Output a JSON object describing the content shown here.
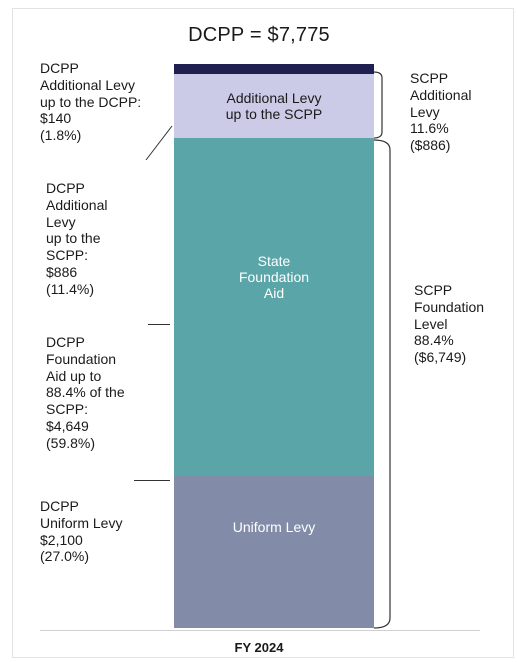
{
  "chart_data": {
    "type": "bar",
    "title": "DCPP = $7,775",
    "categories": [
      "FY 2024"
    ],
    "total": 7775,
    "ylim": [
      0,
      7775
    ],
    "segments": [
      {
        "key": "uniform",
        "name": "Uniform Levy",
        "value": 2100,
        "color": "#828ca8",
        "text_color": "#ffffff"
      },
      {
        "key": "foundation",
        "name": "State\nFoundation\nAid",
        "value": 4649,
        "color": "#5aa5a8",
        "text_color": "#ffffff"
      },
      {
        "key": "addl_scpp",
        "name": "Additional Levy\nup to the SCPP",
        "value": 886,
        "color": "#cbcbe8",
        "text_color": "#1a1a1a"
      },
      {
        "key": "addl_dcpp",
        "name": "",
        "value": 140,
        "color": "#1f2050",
        "text_color": "#ffffff"
      }
    ],
    "left_annotations": [
      {
        "key": "addl_dcpp",
        "text": "DCPP\nAdditional Levy\nup to the DCPP:\n$140\n(1.8%)"
      },
      {
        "key": "addl_scpp",
        "text": "DCPP\nAdditional\nLevy\nup to the\nSCPP:\n$886\n(11.4%)"
      },
      {
        "key": "foundation",
        "text": "DCPP\nFoundation\nAid up to\n88.4% of the\nSCPP:\n$4,649\n(59.8%)"
      },
      {
        "key": "uniform",
        "text": "DCPP\nUniform Levy\n$2,100\n(27.0%)"
      }
    ],
    "right_annotations": [
      {
        "key": "scpp_additional",
        "text": "SCPP\nAdditional\nLevy\n11.6%\n($886)"
      },
      {
        "key": "scpp_foundation",
        "text": "SCPP\nFoundation\nLevel\n88.4%\n($6,749)"
      }
    ]
  }
}
